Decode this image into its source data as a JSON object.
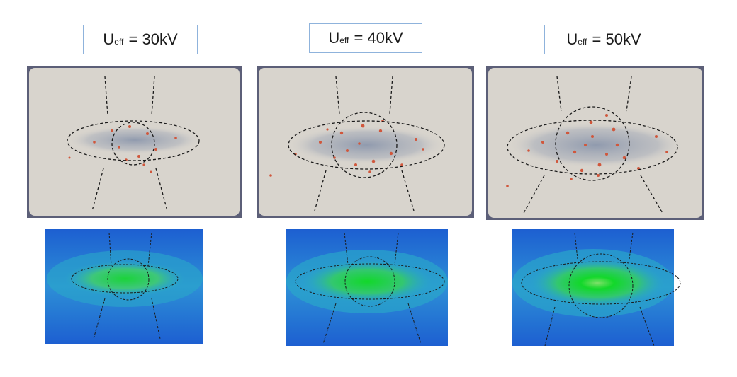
{
  "figure": {
    "panels": [
      {
        "symbol": "U",
        "subscript": "eff",
        "value": "= 30kV"
      },
      {
        "symbol": "U",
        "subscript": "eff",
        "value": "= 40kV"
      },
      {
        "symbol": "U",
        "subscript": "eff",
        "value": "= 50kV"
      }
    ],
    "colors": {
      "plate": "#d8d4cd",
      "plate_border": "#5c5f78",
      "particle_blue": "#8a9ab8",
      "particle_red": "#d0573c",
      "heat_low": "#1d5fd1",
      "heat_mid": "#2aa9c9",
      "heat_high": "#1bd33a",
      "dashed_line": "#1a1a1a"
    }
  }
}
